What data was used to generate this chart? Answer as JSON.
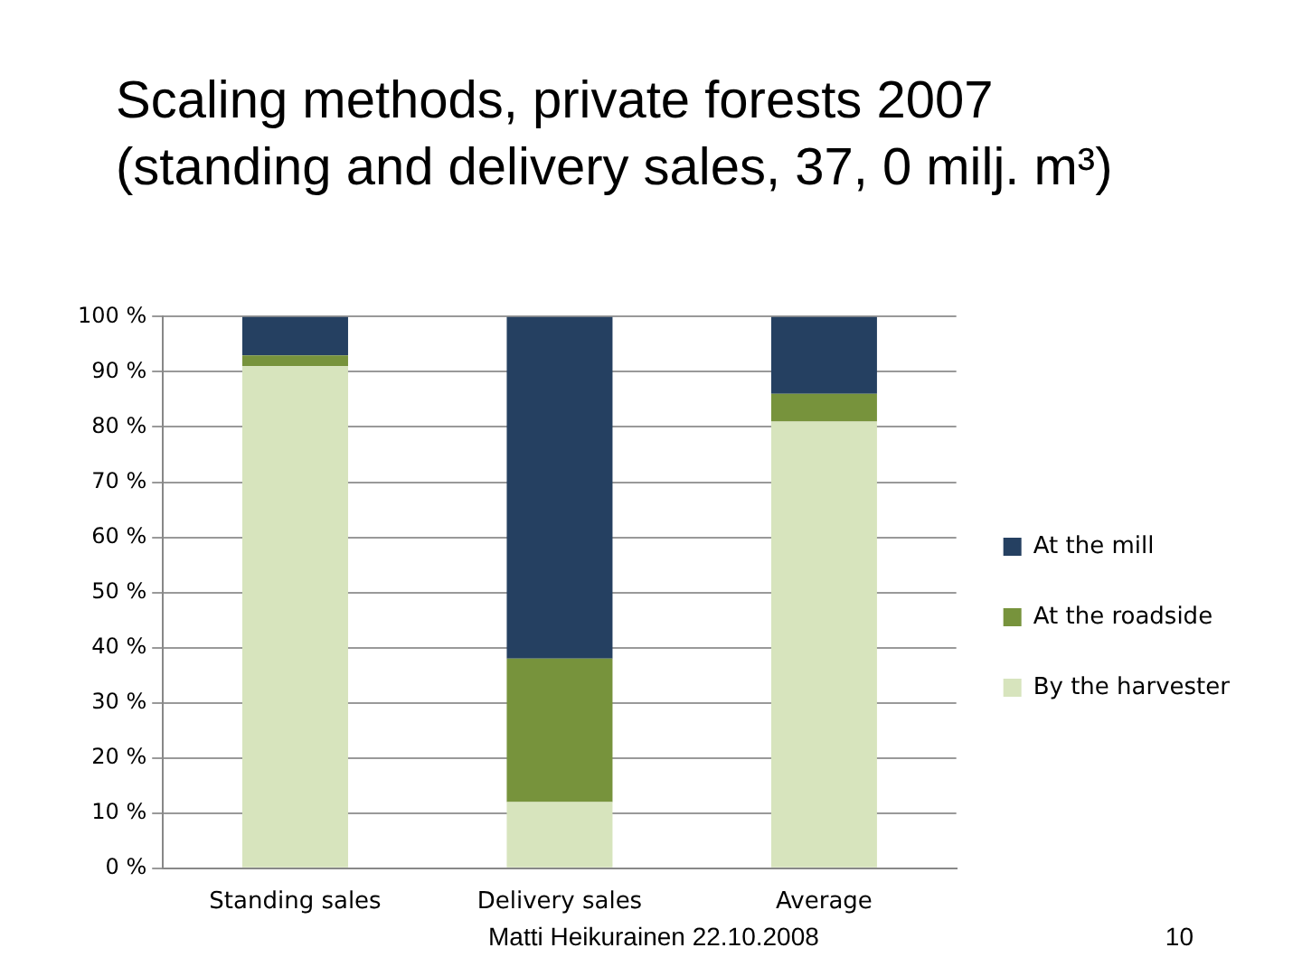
{
  "chart_data": {
    "type": "bar",
    "title": "Scaling methods, private forests 2007\n(standing and delivery sales, 37, 0 milj. m³)",
    "categories": [
      "Standing sales",
      "Delivery sales",
      "Average"
    ],
    "stacked": true,
    "series": [
      {
        "name": "By the harvester",
        "color": "#d7e4bd",
        "values": [
          91,
          12,
          81
        ]
      },
      {
        "name": "At the roadside",
        "color": "#77933c",
        "values": [
          2,
          26,
          5
        ]
      },
      {
        "name": "At the mill",
        "color": "#254061",
        "values": [
          7,
          62,
          14
        ]
      }
    ],
    "ylim": [
      0,
      100
    ],
    "yticks": [
      {
        "value": 0,
        "label": "0 %"
      },
      {
        "value": 10,
        "label": "10 %"
      },
      {
        "value": 20,
        "label": "20 %"
      },
      {
        "value": 30,
        "label": "30 %"
      },
      {
        "value": 40,
        "label": "40 %"
      },
      {
        "value": 50,
        "label": "50 %"
      },
      {
        "value": 60,
        "label": "60 %"
      },
      {
        "value": 70,
        "label": "70 %"
      },
      {
        "value": 80,
        "label": "80 %"
      },
      {
        "value": 90,
        "label": "90 %"
      },
      {
        "value": 100,
        "label": "100 %"
      }
    ],
    "grid": "y",
    "legend": "right",
    "annotations": [
      "Matti Heikurainen 22.10.2008",
      "10"
    ]
  }
}
